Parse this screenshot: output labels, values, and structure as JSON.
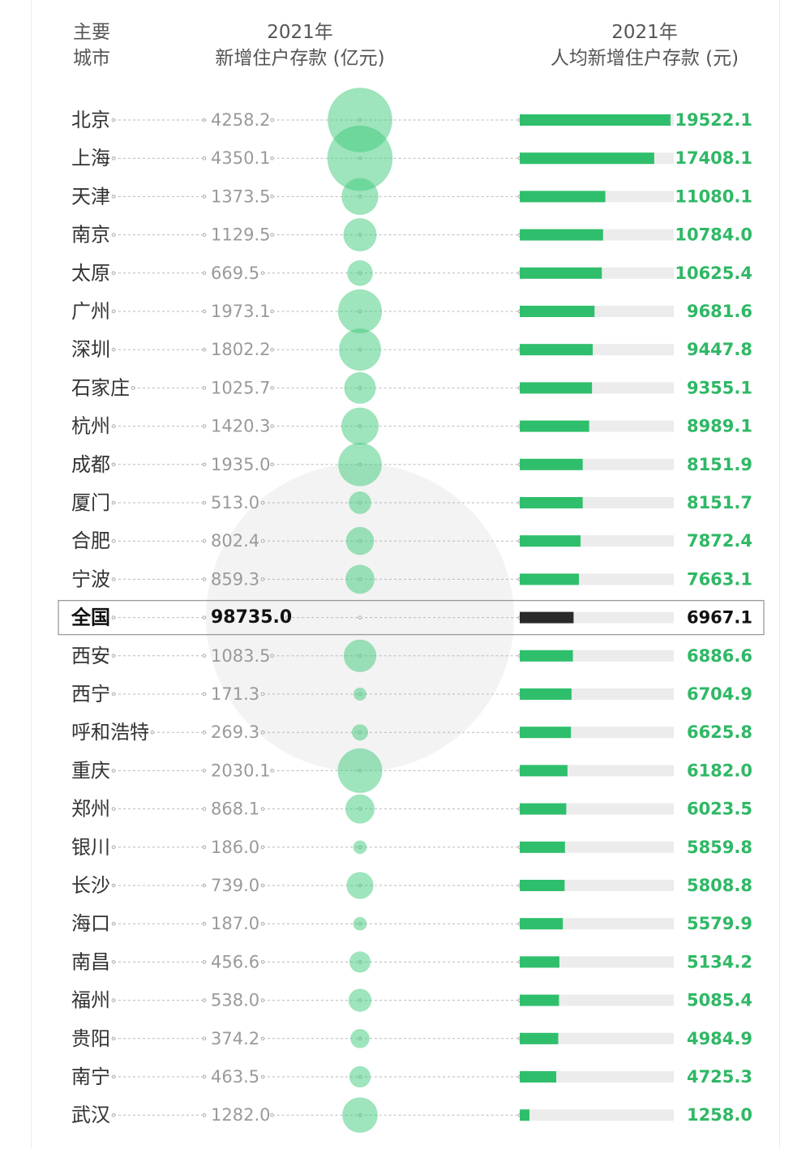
{
  "headers": {
    "city_line1": "主要",
    "city_line2": "城市",
    "deposit_line1": "2021年",
    "deposit_line2": "新增住户存款 (亿元)",
    "percap_line1": "2021年",
    "percap_line2": "人均新增住户存款 (元)"
  },
  "colors": {
    "bar": "#2fbf6c",
    "bar_track": "#ececec",
    "national_bar": "#2a2a2a",
    "bubble": "#3ec979",
    "value_text": "#2fb865",
    "highlight_border": "#9a9a9a"
  },
  "chart_data": {
    "type": "bar",
    "highlight_category": "全国",
    "categories": [
      "北京",
      "上海",
      "天津",
      "南京",
      "太原",
      "广州",
      "深圳",
      "石家庄",
      "杭州",
      "成都",
      "厦门",
      "合肥",
      "宁波",
      "全国",
      "西安",
      "西宁",
      "呼和浩特",
      "重庆",
      "郑州",
      "银川",
      "长沙",
      "海口",
      "南昌",
      "福州",
      "贵阳",
      "南宁",
      "武汉"
    ],
    "series": [
      {
        "name": "2021年新增住户存款 (亿元)",
        "encoding": "bubble",
        "labels": [
          "4258.2",
          "4350.1",
          "1373.5",
          "1129.5",
          "669.5",
          "1973.1",
          "1802.2",
          "1025.7",
          "1420.3",
          "1935.0",
          "513.0",
          "802.4",
          "859.3",
          "98735.0",
          "1083.5",
          "171.3",
          "269.3",
          "2030.1",
          "868.1",
          "186.0",
          "739.0",
          "187.0",
          "456.6",
          "538.0",
          "374.2",
          "463.5",
          "1282.0"
        ],
        "values": [
          4258.2,
          4350.1,
          1373.5,
          1129.5,
          669.5,
          1973.1,
          1802.2,
          1025.7,
          1420.3,
          1935.0,
          513.0,
          802.4,
          859.3,
          98735.0,
          1083.5,
          171.3,
          269.3,
          2030.1,
          868.1,
          186.0,
          739.0,
          187.0,
          456.6,
          538.0,
          374.2,
          463.5,
          1282.0
        ]
      },
      {
        "name": "2021年人均新增住户存款 (元)",
        "encoding": "bar",
        "labels": [
          "19522.1",
          "17408.1",
          "11080.1",
          "10784.0",
          "10625.4",
          "9681.6",
          "9447.8",
          "9355.1",
          "8989.1",
          "8151.9",
          "8151.7",
          "7872.4",
          "7663.1",
          "6967.1",
          "6886.6",
          "6704.9",
          "6625.8",
          "6182.0",
          "6023.5",
          "5859.8",
          "5808.8",
          "5579.9",
          "5134.2",
          "5085.4",
          "4984.9",
          "4725.3",
          "1258.0"
        ],
        "values": [
          19522.1,
          17408.1,
          11080.1,
          10784.0,
          10625.4,
          9681.6,
          9447.8,
          9355.1,
          8989.1,
          8151.9,
          8151.7,
          7872.4,
          7663.1,
          6967.1,
          6886.6,
          6704.9,
          6625.8,
          6182.0,
          6023.5,
          5859.8,
          5808.8,
          5579.9,
          5134.2,
          5085.4,
          4984.9,
          4725.3,
          1258.0
        ]
      }
    ],
    "bar_max": 19522.1,
    "grid": false,
    "legend": "none"
  }
}
